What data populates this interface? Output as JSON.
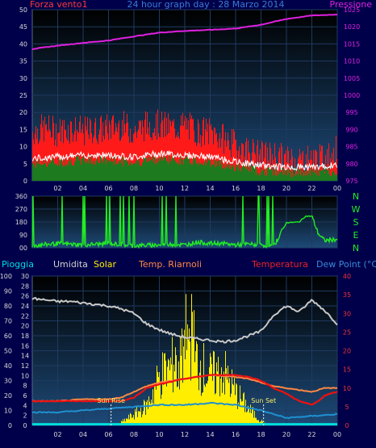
{
  "colors": {
    "background": "#00004a",
    "plot_top": "#000000",
    "plot_bottom": "#1d4a78",
    "frame": "#5a6a8a",
    "grid": "#203a60",
    "tick_text": "#d8d8d8",
    "wind_gust": "#ff1a1a",
    "wind_avg": "#1e7a1e",
    "wind_line": "#ffffff",
    "pressure": "#e020e0",
    "wind_dir": "#22ee22",
    "humidity": "#c8c8c8",
    "solar": "#ffee00",
    "temp_ext": "#ee1111",
    "temp_int": "#ff8844",
    "dew_point": "#1e90d0",
    "rain": "#00dddd",
    "title": "#3a7ad8"
  },
  "chart_data": [
    {
      "type": "line",
      "title": "24 hour graph day : 28 Marzo 2014",
      "left_label": "Forza vento1",
      "right_label": "Pressione",
      "x_ticks": [
        "02",
        "04",
        "06",
        "08",
        "10",
        "12",
        "14",
        "16",
        "18",
        "20",
        "22",
        "00"
      ],
      "ylim": [
        0,
        50
      ],
      "y_ticks": [
        0,
        5,
        10,
        15,
        20,
        25,
        30,
        35,
        40,
        45,
        50
      ],
      "y2lim": [
        975,
        1025
      ],
      "y2_ticks": [
        975,
        980,
        985,
        990,
        995,
        1000,
        1005,
        1010,
        1015,
        1020,
        1025
      ],
      "series": [
        {
          "name": "gust",
          "x": [
            0,
            1,
            2,
            3,
            4,
            5,
            6,
            7,
            8,
            9,
            10,
            11,
            12,
            13,
            14,
            15,
            16,
            17,
            18,
            19,
            20,
            21,
            22,
            23,
            24
          ],
          "values": [
            13,
            14,
            13,
            14,
            13,
            13.5,
            14,
            15,
            13,
            15,
            15,
            14,
            15,
            13,
            13,
            11,
            9,
            7.5,
            6,
            6,
            5,
            5,
            5,
            5,
            8
          ]
        },
        {
          "name": "average",
          "x": [
            0,
            2,
            4,
            6,
            8,
            10,
            12,
            14,
            16,
            18,
            20,
            22,
            24
          ],
          "values": [
            5,
            5.5,
            6,
            6,
            5.5,
            6.5,
            6,
            5.5,
            4,
            3,
            2.5,
            2.5,
            3
          ]
        },
        {
          "name": "pressure",
          "x": [
            0,
            2,
            4,
            6,
            8,
            10,
            12,
            14,
            16,
            18,
            20,
            22,
            24
          ],
          "values": [
            1013.5,
            1014.5,
            1015.3,
            1016,
            1017.2,
            1018.3,
            1018.8,
            1019.1,
            1019.5,
            1020.6,
            1022.3,
            1023.3,
            1023.6
          ]
        }
      ]
    },
    {
      "type": "scatter",
      "left_ticks": [
        "360",
        "270",
        "180",
        "90",
        "00"
      ],
      "right_ticks": [
        "N",
        "W",
        "S",
        "E",
        "N"
      ],
      "ylim": [
        0,
        360
      ],
      "series": [
        {
          "name": "direction",
          "x": [
            0,
            2,
            4,
            6,
            8,
            10,
            11,
            12,
            13,
            14,
            15,
            16,
            17,
            18,
            19,
            20,
            21,
            21.5,
            22,
            22.5,
            23,
            24
          ],
          "values": [
            15,
            30,
            20,
            30,
            15,
            20,
            25,
            20,
            40,
            30,
            30,
            20,
            25,
            20,
            10,
            175,
            180,
            220,
            220,
            100,
            50,
            60
          ]
        }
      ]
    },
    {
      "type": "line",
      "header": {
        "rain": "Pioggia",
        "humidity": "Umidita",
        "solar": "Solar",
        "temp_int": "Temp. Riarnoli",
        "temp_ext": "Temperatura",
        "dew": "Dew Point (°C)"
      },
      "x_ticks": [
        "02",
        "04",
        "06",
        "08",
        "10",
        "12",
        "14",
        "16",
        "18",
        "20",
        "22",
        "00"
      ],
      "ylim": [
        0,
        100
      ],
      "y_ticks": [
        0,
        10,
        20,
        30,
        40,
        50,
        60,
        70,
        80,
        90,
        100
      ],
      "mid_ticks": [
        0,
        2,
        4,
        6,
        8,
        10,
        12,
        14,
        16,
        18,
        20,
        22,
        24,
        26,
        28,
        30
      ],
      "y2lim": [
        0,
        40
      ],
      "y2_ticks": [
        0,
        5,
        10,
        15,
        20,
        25,
        30,
        35,
        40
      ],
      "annotations": [
        "Sun Rise",
        "Sun Set"
      ],
      "sun_rise_x": 6.2,
      "sun_set_x": 18.2,
      "series": [
        {
          "name": "humidity",
          "x": [
            0,
            1,
            2,
            3,
            4,
            5,
            6,
            7,
            8,
            9,
            10,
            11,
            12,
            13,
            14,
            15,
            16,
            17,
            18,
            19,
            20,
            21,
            22,
            23,
            24
          ],
          "values": [
            85,
            84,
            83,
            83,
            82,
            81,
            80,
            78,
            75,
            68,
            64,
            61,
            59,
            58,
            57,
            56,
            57,
            60,
            63,
            74,
            80,
            76,
            84,
            77,
            68
          ]
        },
        {
          "name": "solar",
          "x": [
            0,
            6.5,
            7,
            8,
            9,
            10,
            11,
            12,
            12.5,
            13,
            14,
            15,
            16,
            17,
            18,
            18.5,
            24
          ],
          "values": [
            0,
            0,
            3,
            10,
            18,
            45,
            55,
            60,
            83,
            58,
            45,
            50,
            30,
            15,
            4,
            0,
            0
          ]
        },
        {
          "name": "temp_int",
          "x": [
            0,
            2,
            4,
            6,
            7,
            8,
            9,
            10,
            12,
            14,
            16,
            17,
            18,
            19,
            20,
            21,
            22,
            23,
            24
          ],
          "values": [
            6.5,
            6.5,
            7,
            7,
            7.5,
            9,
            10.5,
            11.5,
            12.5,
            13.5,
            13,
            12.5,
            11.5,
            10.5,
            10,
            9.5,
            9,
            10,
            10
          ]
        },
        {
          "name": "temp_ext",
          "x": [
            0,
            2,
            4,
            6,
            7,
            8,
            9,
            10,
            12,
            14,
            16,
            17,
            18,
            19,
            20,
            21,
            21.5,
            22,
            22.5,
            23,
            24
          ],
          "values": [
            6.5,
            6.5,
            6.5,
            6.5,
            6.5,
            7.5,
            10,
            11,
            12.5,
            13.5,
            13.5,
            13,
            12,
            10,
            8.5,
            6.5,
            6,
            5.5,
            6.5,
            8,
            9
          ]
        },
        {
          "name": "dew_point",
          "x": [
            0,
            2,
            4,
            6,
            8,
            10,
            12,
            14,
            16,
            18,
            20,
            22,
            24
          ],
          "values": [
            3.5,
            3.5,
            4,
            4.5,
            5,
            5.5,
            5.5,
            6,
            5.5,
            4,
            2,
            2.5,
            3
          ]
        },
        {
          "name": "rain",
          "x": [
            0,
            24
          ],
          "values": [
            0.3,
            0.3
          ]
        }
      ]
    }
  ]
}
